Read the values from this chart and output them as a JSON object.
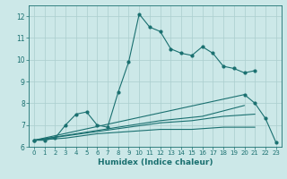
{
  "xlabel": "Humidex (Indice chaleur)",
  "background_color": "#cce8e8",
  "grid_color": "#aacece",
  "line_color": "#1a7070",
  "xlim": [
    -0.5,
    23.5
  ],
  "ylim": [
    6.0,
    12.5
  ],
  "xticks": [
    0,
    1,
    2,
    3,
    4,
    5,
    6,
    7,
    8,
    9,
    10,
    11,
    12,
    13,
    14,
    15,
    16,
    17,
    18,
    19,
    20,
    21,
    22,
    23
  ],
  "yticks": [
    6,
    7,
    8,
    9,
    10,
    11,
    12
  ],
  "series": [
    {
      "x": [
        0,
        1,
        2,
        3,
        4,
        5,
        6,
        7,
        8,
        9,
        10,
        11,
        12,
        13,
        14,
        15,
        16,
        17,
        18,
        19,
        20,
        21
      ],
      "y": [
        6.3,
        6.3,
        6.4,
        7.0,
        7.5,
        7.6,
        7.0,
        6.9,
        8.5,
        9.9,
        12.1,
        11.5,
        11.3,
        10.5,
        10.3,
        10.2,
        10.6,
        10.3,
        9.7,
        9.6,
        9.4,
        9.5
      ],
      "marker": true
    },
    {
      "x": [
        0,
        3,
        6,
        9,
        12,
        15,
        18,
        21
      ],
      "y": [
        6.3,
        6.4,
        6.6,
        6.7,
        6.8,
        6.8,
        6.9,
        6.9
      ],
      "marker": false
    },
    {
      "x": [
        0,
        3,
        6,
        9,
        12,
        15,
        18,
        21
      ],
      "y": [
        6.3,
        6.5,
        6.7,
        6.9,
        7.1,
        7.2,
        7.4,
        7.5
      ],
      "marker": false
    },
    {
      "x": [
        0,
        4,
        8,
        12,
        16,
        20
      ],
      "y": [
        6.3,
        6.6,
        6.9,
        7.2,
        7.4,
        7.9
      ],
      "marker": false
    },
    {
      "x": [
        0,
        20,
        21,
        22,
        23
      ],
      "y": [
        6.3,
        8.4,
        8.0,
        7.3,
        6.2
      ],
      "marker": true
    }
  ]
}
